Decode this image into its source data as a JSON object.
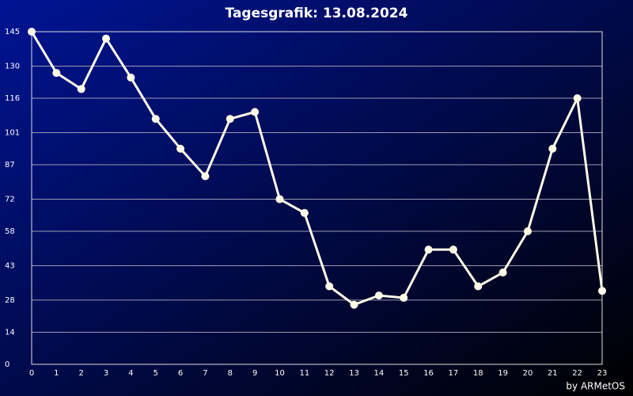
{
  "chart_data": {
    "type": "line",
    "title": "Tagesgrafik: 13.08.2024",
    "credit": "by ARMetOS",
    "x": [
      0,
      1,
      2,
      3,
      4,
      5,
      6,
      7,
      8,
      9,
      10,
      11,
      12,
      13,
      14,
      15,
      16,
      17,
      18,
      19,
      20,
      21,
      22,
      23
    ],
    "series": [
      {
        "color": "#fffbe6",
        "values": [
          145,
          127,
          120,
          142,
          125,
          107,
          94,
          82,
          107,
          110,
          72,
          66,
          34,
          26,
          30,
          29,
          50,
          50,
          34,
          40,
          58,
          94,
          116,
          32
        ]
      }
    ],
    "xlim": [
      0,
      23
    ],
    "xticks": [
      0,
      1,
      2,
      3,
      4,
      5,
      6,
      7,
      8,
      9,
      10,
      11,
      12,
      13,
      14,
      15,
      16,
      17,
      18,
      19,
      20,
      21,
      22,
      23
    ],
    "ylim": [
      0,
      145
    ],
    "yticks": [
      0,
      14,
      28,
      43,
      58,
      72,
      87,
      101,
      116,
      130,
      145
    ],
    "grid": true
  }
}
